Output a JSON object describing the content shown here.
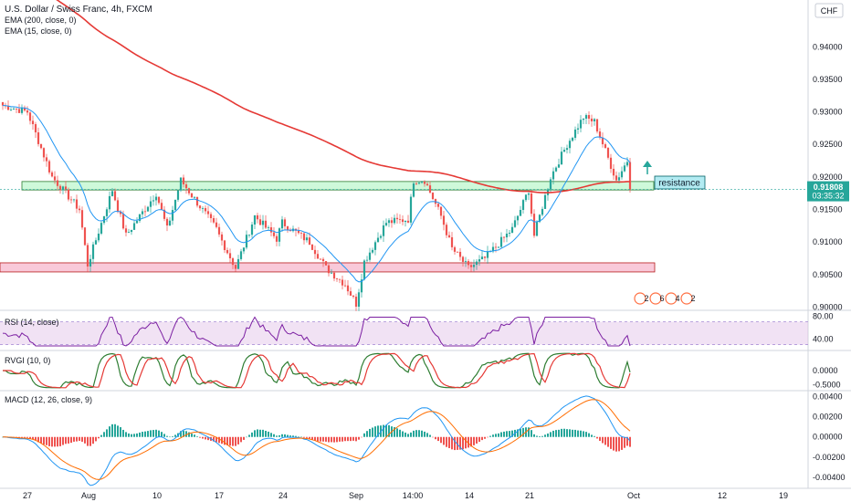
{
  "header": {
    "title": "U.S. Dollar / Swiss Franc, 4h, FXCM",
    "ema200": "EMA (200, close, 0)",
    "ema15": "EMA (15, close, 0)",
    "currency": "CHF"
  },
  "annotation": {
    "resistance_label": "resistance"
  },
  "price_tag": {
    "value": "0.91808",
    "countdown": "03:35:32"
  },
  "events": [
    "2",
    "6",
    "4",
    "2"
  ],
  "colors": {
    "up": "#26a69a",
    "down": "#ef5350",
    "ema200": "#e53935",
    "ema15": "#2196f3",
    "rsi": "#9c27b0",
    "resistance_zone": "#b9f6ca",
    "support_zone": "#f8bbd0",
    "macd": "#2196f3",
    "signal": "#ff6d00"
  },
  "chart_data": [
    {
      "type": "candlestick",
      "panel": "price",
      "y_ticks": [
        "0.94000",
        "0.93500",
        "0.93000",
        "0.92500",
        "0.92000",
        "0.91500",
        "0.91000",
        "0.90500",
        "0.90000"
      ],
      "ylim": [
        0.8995,
        0.9465
      ],
      "x_ticks": [
        "27",
        "Aug",
        "10",
        "17",
        "24",
        "Sep",
        "14:00",
        "14",
        "21",
        "Oct",
        "12",
        "19"
      ],
      "key_points": [
        {
          "x": "27",
          "close": 0.93
        },
        {
          "x": "Aug",
          "close": 0.9065
        },
        {
          "x": "10",
          "close": 0.9175
        },
        {
          "x": "17",
          "close": 0.911
        },
        {
          "x": "24",
          "close": 0.913
        },
        {
          "x": "Sep",
          "close": 0.9005
        },
        {
          "x": "14:00",
          "close": 0.9195
        },
        {
          "x": "14",
          "close": 0.906
        },
        {
          "x": "21",
          "close": 0.918
        },
        {
          "x": "Oct",
          "close": 0.9181
        }
      ],
      "zones": [
        {
          "name": "resistance",
          "low": 0.918,
          "high": 0.9193
        },
        {
          "name": "support",
          "low": 0.9054,
          "high": 0.9068
        }
      ],
      "last_price": 0.91808
    },
    {
      "type": "line",
      "panel": "RSI",
      "title": "RSI (14, close)",
      "y_ticks": [
        "80.00",
        "40.00"
      ],
      "band": [
        30,
        70
      ]
    },
    {
      "type": "line",
      "panel": "RVGI",
      "title": "RVGI (10, 0)",
      "y_ticks": [
        "0.0000",
        "-0.5000"
      ]
    },
    {
      "type": "histogram",
      "panel": "MACD",
      "title": "MACD (12, 26, close, 9)",
      "y_ticks": [
        "0.00400",
        "0.00200",
        "0.00000",
        "-0.00200",
        "-0.00400"
      ]
    }
  ]
}
